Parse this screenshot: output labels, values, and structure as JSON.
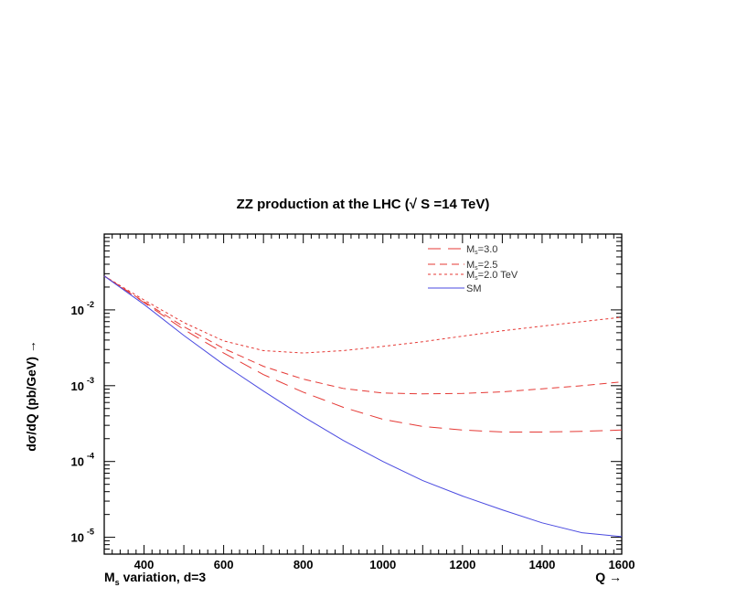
{
  "chart_data": {
    "type": "line",
    "title": "ZZ production at the LHC (√ S =14 TeV)",
    "xlabel_left_main": "M",
    "xlabel_left_sub": "s",
    "xlabel_left_rest": " variation,  d=3",
    "xlabel_right": "Q →",
    "ylabel": "dσ/dQ (pb/GeV)  →",
    "xlim": [
      300,
      1600
    ],
    "ylim": [
      6e-06,
      0.1
    ],
    "yscale": "log",
    "x_ticks": [
      400,
      600,
      800,
      1000,
      1200,
      1400,
      1600
    ],
    "y_ticks": [
      {
        "value": 0.01,
        "base": "10",
        "exp": "-2"
      },
      {
        "value": 0.001,
        "base": "10",
        "exp": "-3"
      },
      {
        "value": 0.0001,
        "base": "10",
        "exp": "-4"
      },
      {
        "value": 1e-05,
        "base": "10",
        "exp": "-5"
      }
    ],
    "legend_position": "top-right",
    "series": [
      {
        "name_main": "M",
        "name_sub": "s",
        "name_rest": "=3.0",
        "color": "#e53935",
        "style": "dash-long",
        "x": [
          300,
          400,
          500,
          600,
          700,
          800,
          900,
          1000,
          1100,
          1200,
          1300,
          1400,
          1500,
          1600
        ],
        "y": [
          0.028,
          0.0125,
          0.0055,
          0.0027,
          0.0014,
          0.00082,
          0.00052,
          0.00036,
          0.00029,
          0.00026,
          0.000245,
          0.000245,
          0.00025,
          0.00026
        ]
      },
      {
        "name_main": "M",
        "name_sub": "s",
        "name_rest": "=2.5",
        "color": "#e53935",
        "style": "dash-medium",
        "x": [
          300,
          400,
          500,
          600,
          700,
          800,
          900,
          1000,
          1100,
          1200,
          1300,
          1400,
          1500,
          1600
        ],
        "y": [
          0.028,
          0.0128,
          0.006,
          0.0031,
          0.0018,
          0.00122,
          0.00092,
          0.0008,
          0.00078,
          0.00079,
          0.00083,
          0.00091,
          0.001,
          0.00112
        ]
      },
      {
        "name_main": "M",
        "name_sub": "s",
        "name_rest": "=2.0 TeV",
        "color": "#e53935",
        "style": "dash-short",
        "x": [
          300,
          400,
          500,
          600,
          700,
          800,
          900,
          1000,
          1100,
          1200,
          1300,
          1400,
          1500,
          1600
        ],
        "y": [
          0.028,
          0.0135,
          0.0068,
          0.0039,
          0.0029,
          0.0027,
          0.0029,
          0.0033,
          0.0038,
          0.0045,
          0.0053,
          0.0061,
          0.007,
          0.008
        ]
      },
      {
        "name_main": "SM",
        "name_sub": "",
        "name_rest": "",
        "color": "#4a4ae0",
        "style": "solid",
        "x": [
          300,
          400,
          500,
          600,
          700,
          800,
          900,
          1000,
          1100,
          1200,
          1300,
          1400,
          1500,
          1600
        ],
        "y": [
          0.028,
          0.0118,
          0.0046,
          0.0019,
          0.00085,
          0.00039,
          0.00019,
          0.0001,
          5.6e-05,
          3.5e-05,
          2.3e-05,
          1.55e-05,
          1.15e-05,
          1.02e-05
        ]
      }
    ]
  }
}
